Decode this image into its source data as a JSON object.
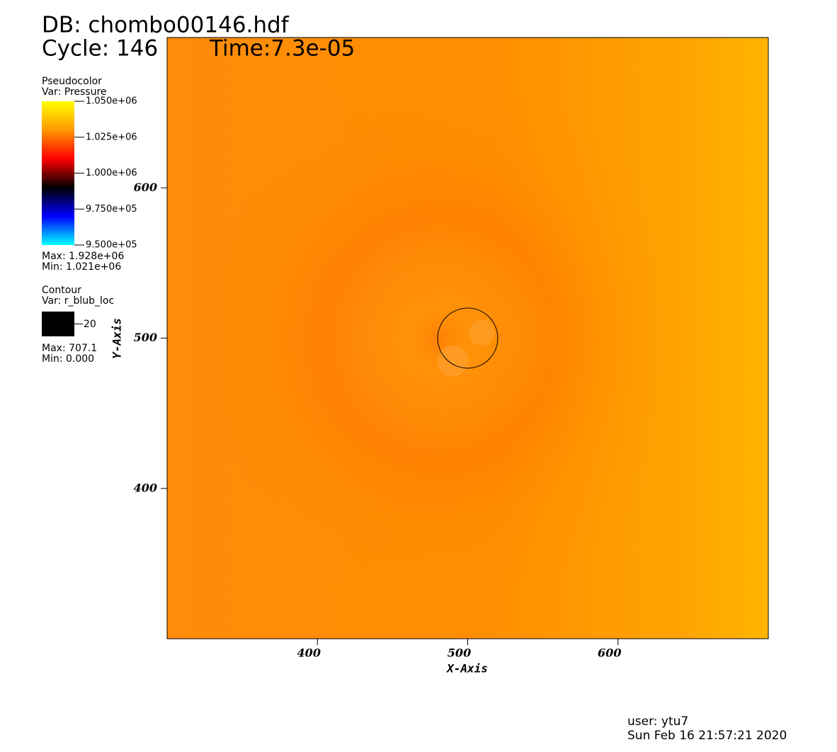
{
  "chart_data": {
    "type": "pseudocolor",
    "title": "DB: chombo00146.hdf",
    "cycle": "Cycle: 146",
    "time": "Time:7.3e-05",
    "x_label": "X-Axis",
    "y_label": "Y-Axis",
    "xlim": [
      300,
      700
    ],
    "ylim": [
      300,
      700
    ],
    "xticks": [
      400,
      500,
      600
    ],
    "yticks": [
      400,
      500,
      600
    ],
    "pseudocolor_legend": {
      "title": "Pseudocolor",
      "var": "Var: Pressure",
      "range": [
        950000,
        1050000
      ],
      "ticks": [
        {
          "value": 1050000,
          "label": "1.050e+06"
        },
        {
          "value": 1025000,
          "label": "1.025e+06"
        },
        {
          "value": 1000000,
          "label": "1.000e+06"
        },
        {
          "value": 975000,
          "label": "9.750e+05"
        },
        {
          "value": 950000,
          "label": "9.500e+05"
        }
      ],
      "colors": [
        "#00ffff",
        "#0000ff",
        "#000000",
        "#ff0000",
        "#ff9900",
        "#ffff00"
      ],
      "max": "Max: 1.928e+06",
      "min": "Min: 1.021e+06"
    },
    "contour_legend": {
      "title": "Contour",
      "var": "Var: r_blub_loc",
      "level": 20,
      "color": "#000000",
      "max": "Max: 707.1",
      "min": "Min: 0.000"
    },
    "contour_center": [
      500,
      500
    ],
    "user": "user: ytu7",
    "date": "Sun Feb 16 21:57:21 2020"
  }
}
